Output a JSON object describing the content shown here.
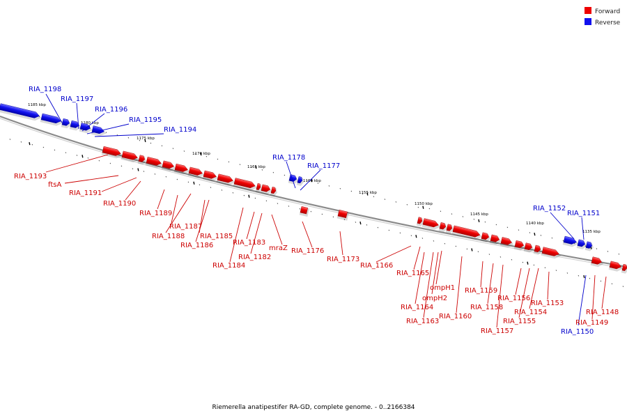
{
  "legend": {
    "forward_label": "Forward",
    "reverse_label": "Reverse",
    "forward_color": "#ee0000",
    "reverse_color": "#1111ee"
  },
  "caption": "Riemerella anatipestifer RA-GD, complete genome. - 0..2166384",
  "colors": {
    "backbone": "#6a6a6a",
    "forward_line": "#cc0000",
    "reverse_line": "#0000cc"
  },
  "ticks": [
    "1185 kbp",
    "1180 kbp",
    "1175 kbp",
    "1170 kbp",
    "1165 kbp",
    "1160 kbp",
    "1155 kbp",
    "1150 kbp",
    "1145 kbp",
    "1140 kbp",
    "1135 kbp"
  ],
  "genes_reverse": [
    "RIA_1198",
    "RIA_1197",
    "RIA_1196",
    "RIA_1195",
    "RIA_1194",
    "RIA_1178",
    "RIA_1177",
    "RIA_1152",
    "RIA_1151",
    "RIA_1150"
  ],
  "genes_forward": [
    "RIA_1193",
    "ftsA",
    "RIA_1191",
    "RIA_1190",
    "RIA_1189",
    "RIA_1187",
    "RIA_1188",
    "RIA_1186",
    "RIA_1185",
    "RIA_1183",
    "RIA_1184",
    "RIA_1182",
    "mraZ",
    "RIA_1176",
    "RIA_1173",
    "RIA_1166",
    "RIA_1165",
    "ompH1",
    "ompH2",
    "RIA_1164",
    "RIA_1163",
    "RIA_1160",
    "RIA_1159",
    "RIA_1158",
    "RIA_1157",
    "RIA_1156",
    "RIA_1155",
    "RIA_1154",
    "RIA_1153",
    "RIA_1149",
    "RIA_1148"
  ]
}
